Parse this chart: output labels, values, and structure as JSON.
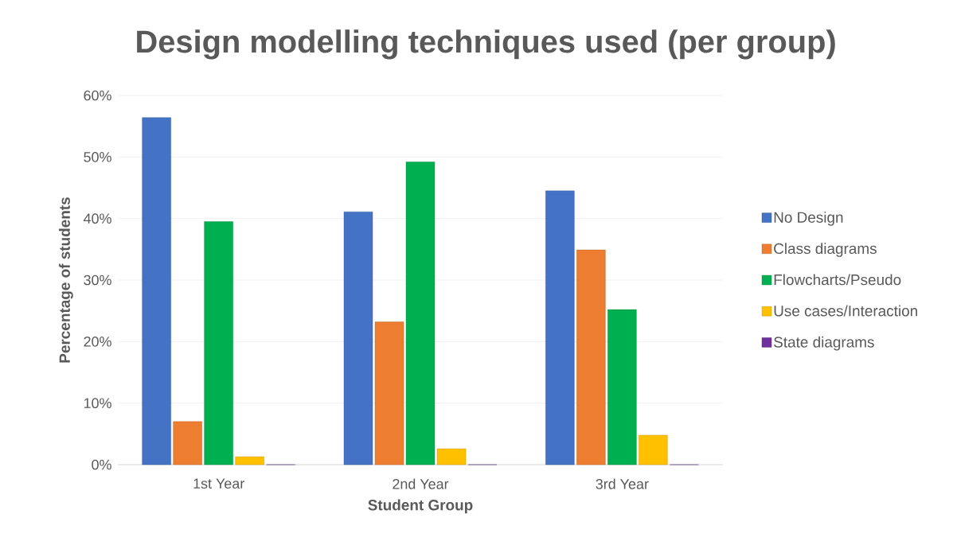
{
  "chart_data": {
    "type": "bar",
    "title": "Design modelling techniques used (per group)",
    "xlabel": "Student Group",
    "ylabel": "Percentage of students",
    "categories": [
      "1st Year",
      "2nd Year",
      "3rd Year"
    ],
    "series": [
      {
        "name": "No Design",
        "color": "#4472c4",
        "values": [
          56.4,
          41.1,
          44.5
        ]
      },
      {
        "name": "Class diagrams",
        "color": "#ed7d31",
        "values": [
          7.0,
          23.2,
          34.9
        ]
      },
      {
        "name": "Flowcharts/Pseudo",
        "color": "#00b050",
        "values": [
          39.5,
          49.2,
          25.2
        ]
      },
      {
        "name": "Use cases/Interaction",
        "color": "#ffc000",
        "values": [
          1.3,
          2.6,
          4.8
        ]
      },
      {
        "name": "State diagrams",
        "color": "#7030a0",
        "values": [
          0,
          0,
          0
        ]
      }
    ],
    "ylim": [
      0,
      60
    ],
    "yticks": [
      {
        "value": 0,
        "label": "0%"
      },
      {
        "value": 10,
        "label": "10%"
      },
      {
        "value": 20,
        "label": "20%"
      },
      {
        "value": 30,
        "label": "30%"
      },
      {
        "value": 40,
        "label": "40%"
      },
      {
        "value": 50,
        "label": "50%"
      },
      {
        "value": 60,
        "label": "60%"
      }
    ],
    "grid": "y",
    "legend": "right"
  }
}
